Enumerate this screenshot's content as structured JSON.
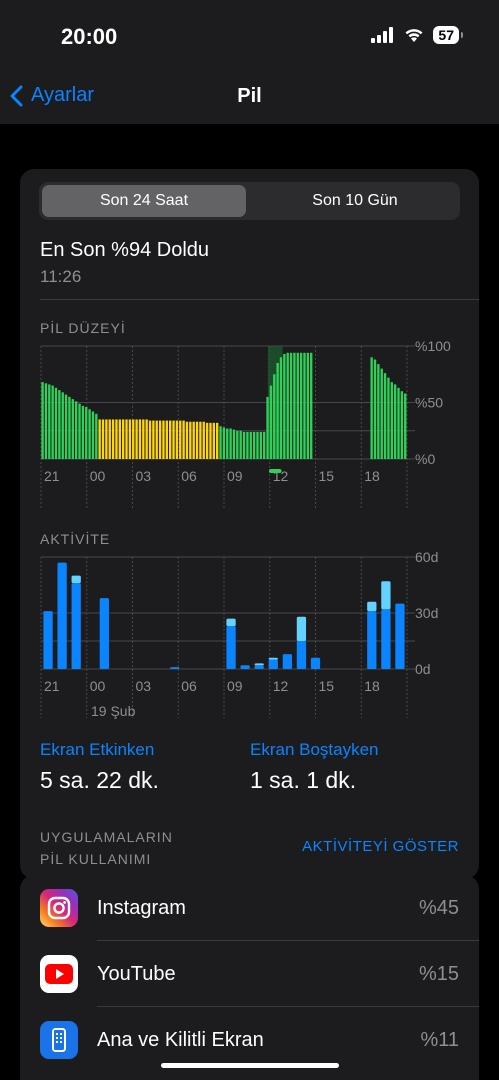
{
  "status_bar": {
    "time": "20:00",
    "battery": "57"
  },
  "nav": {
    "back_label": "Ayarlar",
    "title": "Pil"
  },
  "segments": [
    {
      "label": "Son 24 Saat",
      "selected": true
    },
    {
      "label": "Son 10 Gün",
      "selected": false
    }
  ],
  "last_charge": {
    "title": "En Son %94 Doldu",
    "time": "11:26"
  },
  "battery_level": {
    "label": "PİL DÜZEYİ"
  },
  "activity": {
    "label": "AKTİVİTE",
    "date_label": "19 Şub"
  },
  "screen_stats": {
    "active_label": "Ekran Etkinken",
    "active_value": "5 sa. 22 dk.",
    "idle_label": "Ekran Boştayken",
    "idle_value": "1 sa. 1 dk."
  },
  "apps_section": {
    "heading_line1": "UYGULAMALARIN",
    "heading_line2": "PİL KULLANIMI",
    "show_activity": "AKTİVİTEYİ GÖSTER"
  },
  "apps": [
    {
      "name": "Instagram",
      "percent": "%45",
      "icon": "instagram-icon"
    },
    {
      "name": "YouTube",
      "percent": "%15",
      "icon": "youtube-icon"
    },
    {
      "name": "Ana ve Kilitli Ekran",
      "percent": "%11",
      "icon": "home-lock-screen-icon"
    }
  ],
  "colors": {
    "accent": "#0a84ff",
    "battery_normal": "#30d158",
    "battery_low_power": "#ffd60a",
    "activity_screen_on": "#0a84ff",
    "activity_screen_off": "#64d2ff",
    "charging_band": "#1e5e2d"
  },
  "chart_data": [
    {
      "type": "bar",
      "title": "PİL DÜZEYİ",
      "x_ticks": [
        "21",
        "00",
        "03",
        "06",
        "09",
        "12",
        "15",
        "18"
      ],
      "y_ticks": [
        "%100",
        "%50",
        "%0"
      ],
      "ylim": [
        0,
        100
      ],
      "grid": true,
      "bar_groups": [
        {
          "mode": "normal",
          "values": [
            68,
            67,
            66,
            65,
            63,
            61,
            59,
            57,
            55,
            53,
            51,
            49,
            47,
            46,
            44,
            42,
            40
          ]
        },
        {
          "mode": "low_power",
          "values": [
            35,
            35,
            35,
            35,
            35,
            35,
            35,
            35,
            35,
            35,
            35,
            35,
            35,
            35,
            35,
            34,
            34,
            34,
            34,
            34,
            34,
            34,
            34,
            34,
            34,
            34,
            33,
            33,
            33,
            33,
            33,
            33,
            32,
            32,
            32,
            32
          ]
        },
        {
          "mode": "normal",
          "values": [
            29,
            28,
            27,
            27,
            26,
            25,
            25,
            24,
            24,
            24,
            24,
            24,
            24,
            24
          ]
        },
        {
          "mode": "normal",
          "values": [
            55,
            65,
            75,
            85,
            90,
            93,
            94,
            94,
            94,
            94,
            94,
            94,
            94,
            94
          ]
        },
        {
          "mode": "none",
          "count": 17
        },
        {
          "mode": "normal",
          "values": [
            90,
            88,
            84,
            80,
            76,
            72,
            68,
            66,
            63,
            60,
            58
          ]
        }
      ],
      "charging_marker": {
        "position": 0.62,
        "width": 0.04
      }
    },
    {
      "type": "bar",
      "title": "AKTİVİTE",
      "x_ticks": [
        "21",
        "00",
        "03",
        "06",
        "09",
        "12",
        "15",
        "18"
      ],
      "y_ticks": [
        "60d",
        "30d",
        "0d"
      ],
      "ylim": [
        0,
        60
      ],
      "unit": "minutes per hour",
      "grid": true,
      "series": [
        {
          "name": "screen_on",
          "values": [
            31,
            57,
            46,
            0,
            38,
            0,
            0,
            0,
            0,
            1,
            0,
            0,
            0,
            23,
            2,
            2,
            5,
            8,
            15,
            6,
            0,
            0,
            0,
            31,
            32,
            35
          ]
        },
        {
          "name": "screen_off",
          "values": [
            0,
            0,
            4,
            0,
            0,
            0,
            0,
            0,
            0,
            0,
            0,
            0,
            0,
            4,
            0,
            1,
            1,
            0,
            13,
            0,
            0,
            0,
            0,
            5,
            15,
            0
          ]
        }
      ]
    }
  ]
}
